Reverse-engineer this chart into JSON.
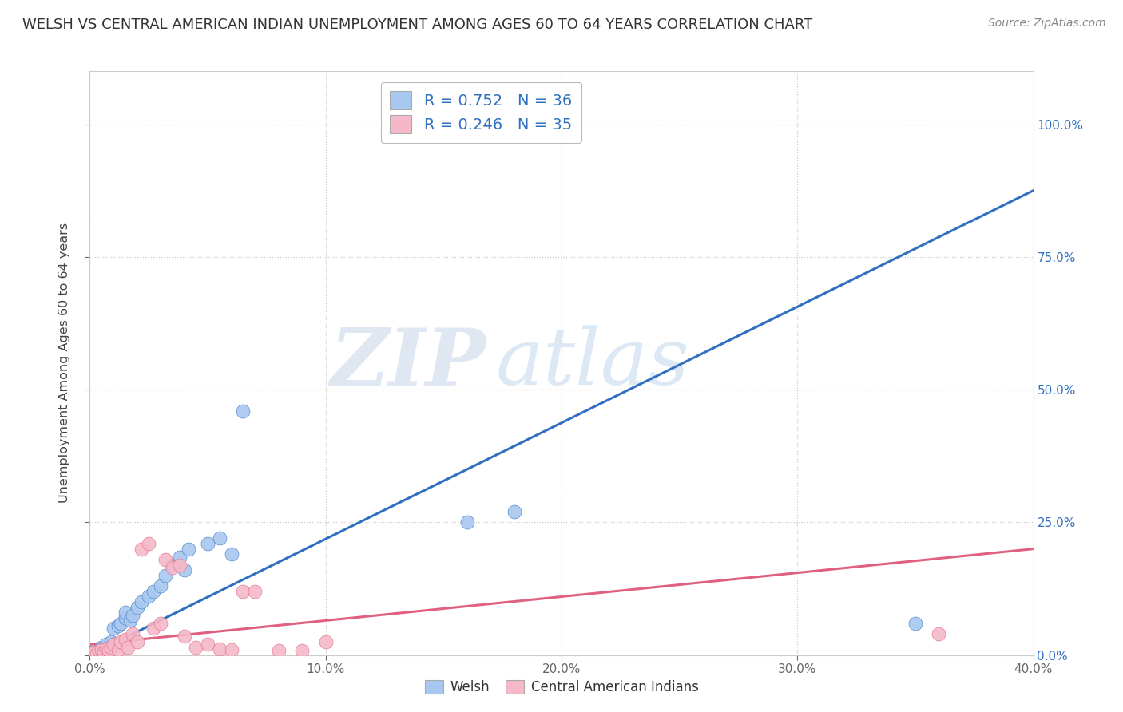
{
  "title": "WELSH VS CENTRAL AMERICAN INDIAN UNEMPLOYMENT AMONG AGES 60 TO 64 YEARS CORRELATION CHART",
  "source": "Source: ZipAtlas.com",
  "ylabel": "Unemployment Among Ages 60 to 64 years",
  "xlim": [
    0.0,
    0.4
  ],
  "ylim": [
    0.0,
    1.1
  ],
  "welsh_R": 0.752,
  "welsh_N": 36,
  "cai_R": 0.246,
  "cai_N": 35,
  "welsh_color": "#a8c8f0",
  "cai_color": "#f5b8c8",
  "welsh_line_color": "#3070c0",
  "cai_line_color": "#e06080",
  "watermark_zip": "ZIP",
  "watermark_atlas": "atlas",
  "title_fontsize": 13,
  "welsh_scatter_x": [
    0.0,
    0.001,
    0.002,
    0.003,
    0.004,
    0.005,
    0.005,
    0.006,
    0.007,
    0.008,
    0.009,
    0.01,
    0.01,
    0.012,
    0.013,
    0.015,
    0.015,
    0.017,
    0.018,
    0.02,
    0.022,
    0.025,
    0.027,
    0.03,
    0.032,
    0.035,
    0.038,
    0.04,
    0.042,
    0.05,
    0.055,
    0.06,
    0.065,
    0.16,
    0.18,
    0.35
  ],
  "welsh_scatter_y": [
    0.0,
    0.005,
    0.0,
    0.005,
    0.01,
    0.005,
    0.015,
    0.01,
    0.02,
    0.015,
    0.025,
    0.02,
    0.05,
    0.055,
    0.06,
    0.07,
    0.08,
    0.065,
    0.075,
    0.09,
    0.1,
    0.11,
    0.12,
    0.13,
    0.15,
    0.17,
    0.185,
    0.16,
    0.2,
    0.21,
    0.22,
    0.19,
    0.46,
    0.25,
    0.27,
    0.06
  ],
  "cai_scatter_x": [
    0.0,
    0.001,
    0.002,
    0.003,
    0.004,
    0.005,
    0.006,
    0.007,
    0.008,
    0.009,
    0.01,
    0.012,
    0.013,
    0.015,
    0.016,
    0.018,
    0.02,
    0.022,
    0.025,
    0.027,
    0.03,
    0.032,
    0.035,
    0.038,
    0.04,
    0.045,
    0.05,
    0.055,
    0.06,
    0.065,
    0.07,
    0.08,
    0.09,
    0.1,
    0.36
  ],
  "cai_scatter_y": [
    0.0,
    0.002,
    0.005,
    0.003,
    0.008,
    0.01,
    0.005,
    0.012,
    0.008,
    0.015,
    0.02,
    0.01,
    0.025,
    0.03,
    0.015,
    0.04,
    0.025,
    0.2,
    0.21,
    0.05,
    0.06,
    0.18,
    0.165,
    0.17,
    0.035,
    0.015,
    0.02,
    0.012,
    0.01,
    0.12,
    0.12,
    0.008,
    0.008,
    0.025,
    0.04
  ],
  "welsh_line_x": [
    0.0,
    0.4
  ],
  "welsh_line_y": [
    0.0,
    0.875
  ],
  "cai_line_x": [
    0.0,
    0.4
  ],
  "cai_line_y": [
    0.02,
    0.2
  ]
}
